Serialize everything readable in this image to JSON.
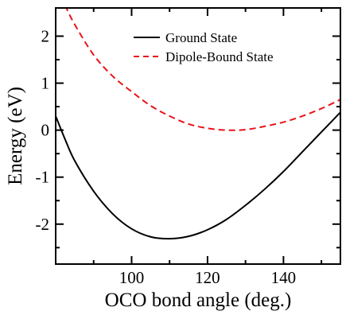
{
  "chart_data": {
    "type": "line",
    "xlabel": "OCO bond angle (deg.)",
    "ylabel": "Energy (eV)",
    "xlim": [
      80,
      155
    ],
    "ylim": [
      -2.85,
      2.6
    ],
    "x_ticks_major": [
      100,
      120,
      140
    ],
    "x_ticks_minor": [
      90,
      110,
      130,
      150
    ],
    "y_ticks_major": [
      -2,
      -1,
      0,
      1,
      2
    ],
    "y_ticks_minor": [
      -2.5,
      -1.5,
      -0.5,
      0.5,
      1.5
    ],
    "x_tick_labels": [
      "100",
      "120",
      "140"
    ],
    "y_tick_labels": [
      "-2",
      "-1",
      "0",
      "1",
      "2"
    ],
    "legend_position": "top-right",
    "grid": false,
    "series": [
      {
        "name": "Ground State",
        "color": "#000000",
        "dash": "solid",
        "x": [
          80,
          82.5,
          85,
          90,
          95,
          100,
          105,
          110,
          115,
          120,
          125,
          130,
          135,
          140,
          145,
          150,
          155
        ],
        "y": [
          0.3,
          -0.2,
          -0.65,
          -1.3,
          -1.78,
          -2.1,
          -2.27,
          -2.31,
          -2.26,
          -2.12,
          -1.9,
          -1.6,
          -1.26,
          -0.88,
          -0.46,
          -0.04,
          0.38
        ]
      },
      {
        "name": "Dipole-Bound State",
        "color": "#e8141a",
        "dash": "dashed",
        "x": [
          80,
          82.5,
          85,
          90,
          95,
          100,
          105,
          110,
          115,
          120,
          125,
          130,
          135,
          140,
          145,
          150,
          155
        ],
        "y": [
          3.05,
          2.65,
          2.25,
          1.6,
          1.15,
          0.82,
          0.52,
          0.3,
          0.13,
          0.04,
          0.0,
          0.01,
          0.08,
          0.17,
          0.3,
          0.46,
          0.65
        ]
      }
    ]
  }
}
